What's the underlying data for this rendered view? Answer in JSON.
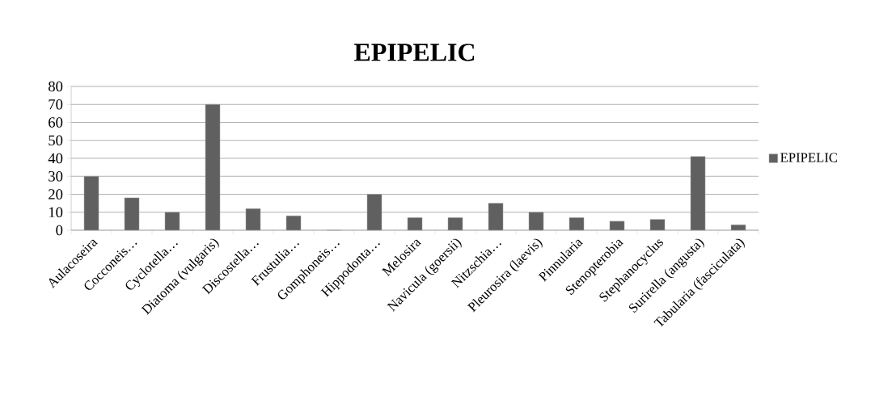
{
  "chart_data": {
    "type": "bar",
    "title": "EPIPELIC",
    "categories": [
      "Aulacoseira",
      "Cocconeis…",
      "Cyclotella…",
      "Diatoma (vulgaris)",
      "Discostella…",
      "Frustulia…",
      "Gomphoneis…",
      "Hippodonta…",
      "Melosira",
      "Navicula (goersii)",
      "Nitzschia…",
      "Pleurosira (laevis)",
      "Pinnularia",
      "Stenopterobia",
      "Stephanocyclus",
      "Surirella (angusta)",
      "Tabularia (fasciculata)"
    ],
    "series": [
      {
        "name": "EPIPELIC",
        "color": "#606060",
        "values": [
          30,
          18,
          10,
          70,
          12,
          8,
          0,
          20,
          7,
          7,
          15,
          10,
          7,
          5,
          6,
          41,
          3
        ]
      }
    ],
    "ylim": [
      0,
      80
    ],
    "yticks": [
      0,
      10,
      20,
      30,
      40,
      50,
      60,
      70,
      80
    ],
    "grid": "y",
    "legend": "right"
  }
}
